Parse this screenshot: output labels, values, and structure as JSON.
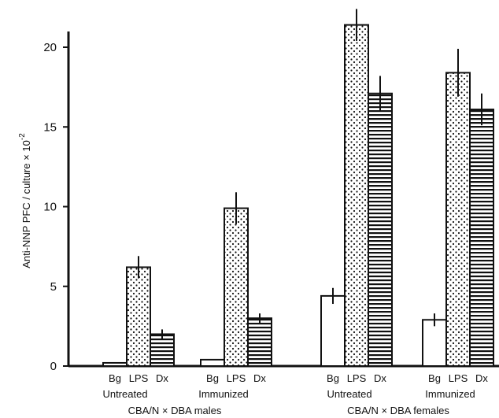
{
  "chart_data": {
    "type": "bar",
    "ylabel": "Anti-NNP PFC / culture × 10",
    "ylabel_exponent": "-2",
    "ylim": [
      0,
      22
    ],
    "yticks": [
      "0",
      "5",
      "10",
      "15",
      "20"
    ],
    "bar_labels": [
      "Bg",
      "LPS",
      "Dx"
    ],
    "bar_patterns": [
      "open",
      "dotted",
      "horizontal-stripes"
    ],
    "groups": [
      {
        "treatment": "Untreated",
        "values": [
          0.2,
          6.2,
          2.0
        ],
        "errors": [
          0.0,
          0.7,
          0.3
        ]
      },
      {
        "treatment": "Immunized",
        "values": [
          0.4,
          9.9,
          3.0
        ],
        "errors": [
          0.0,
          1.0,
          0.3
        ]
      },
      {
        "treatment": "Untreated",
        "values": [
          4.4,
          21.4,
          17.1
        ],
        "errors": [
          0.5,
          1.0,
          1.1
        ]
      },
      {
        "treatment": "Immunized",
        "values": [
          2.9,
          18.4,
          16.1
        ],
        "errors": [
          0.4,
          1.5,
          1.0
        ]
      }
    ],
    "strains": [
      "CBA/N × DBA males",
      "CBA/N × DBA females"
    ],
    "grid": false
  }
}
